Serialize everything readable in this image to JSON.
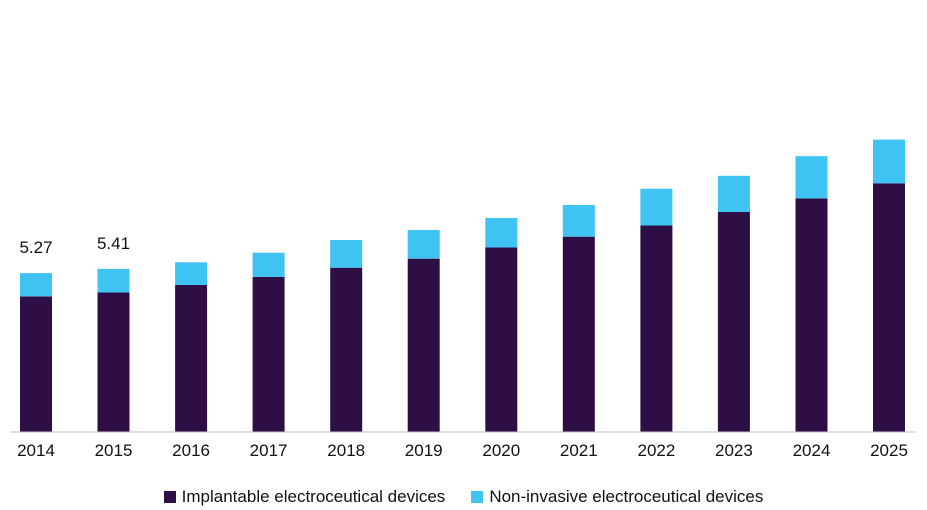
{
  "chart_data": {
    "type": "bar",
    "stacked": true,
    "categories": [
      "2014",
      "2015",
      "2016",
      "2017",
      "2018",
      "2019",
      "2020",
      "2021",
      "2022",
      "2023",
      "2024",
      "2025"
    ],
    "series": [
      {
        "name": "Implantable electroceutical devices",
        "color": "#2e0f45",
        "values": [
          4.5,
          4.63,
          4.88,
          5.15,
          5.45,
          5.75,
          6.12,
          6.48,
          6.85,
          7.3,
          7.75,
          8.25
        ]
      },
      {
        "name": "Non-invasive electroceutical devices",
        "color": "#3ec3f2",
        "values": [
          0.77,
          0.78,
          0.75,
          0.8,
          0.92,
          0.95,
          0.98,
          1.05,
          1.22,
          1.2,
          1.4,
          1.45
        ]
      }
    ],
    "data_labels": [
      "5.27",
      "5.41",
      "",
      "",
      "",
      "",
      "",
      "",
      "",
      "",
      "",
      ""
    ],
    "ylim": [
      0,
      14
    ],
    "grid": false,
    "legend_position": "bottom"
  }
}
